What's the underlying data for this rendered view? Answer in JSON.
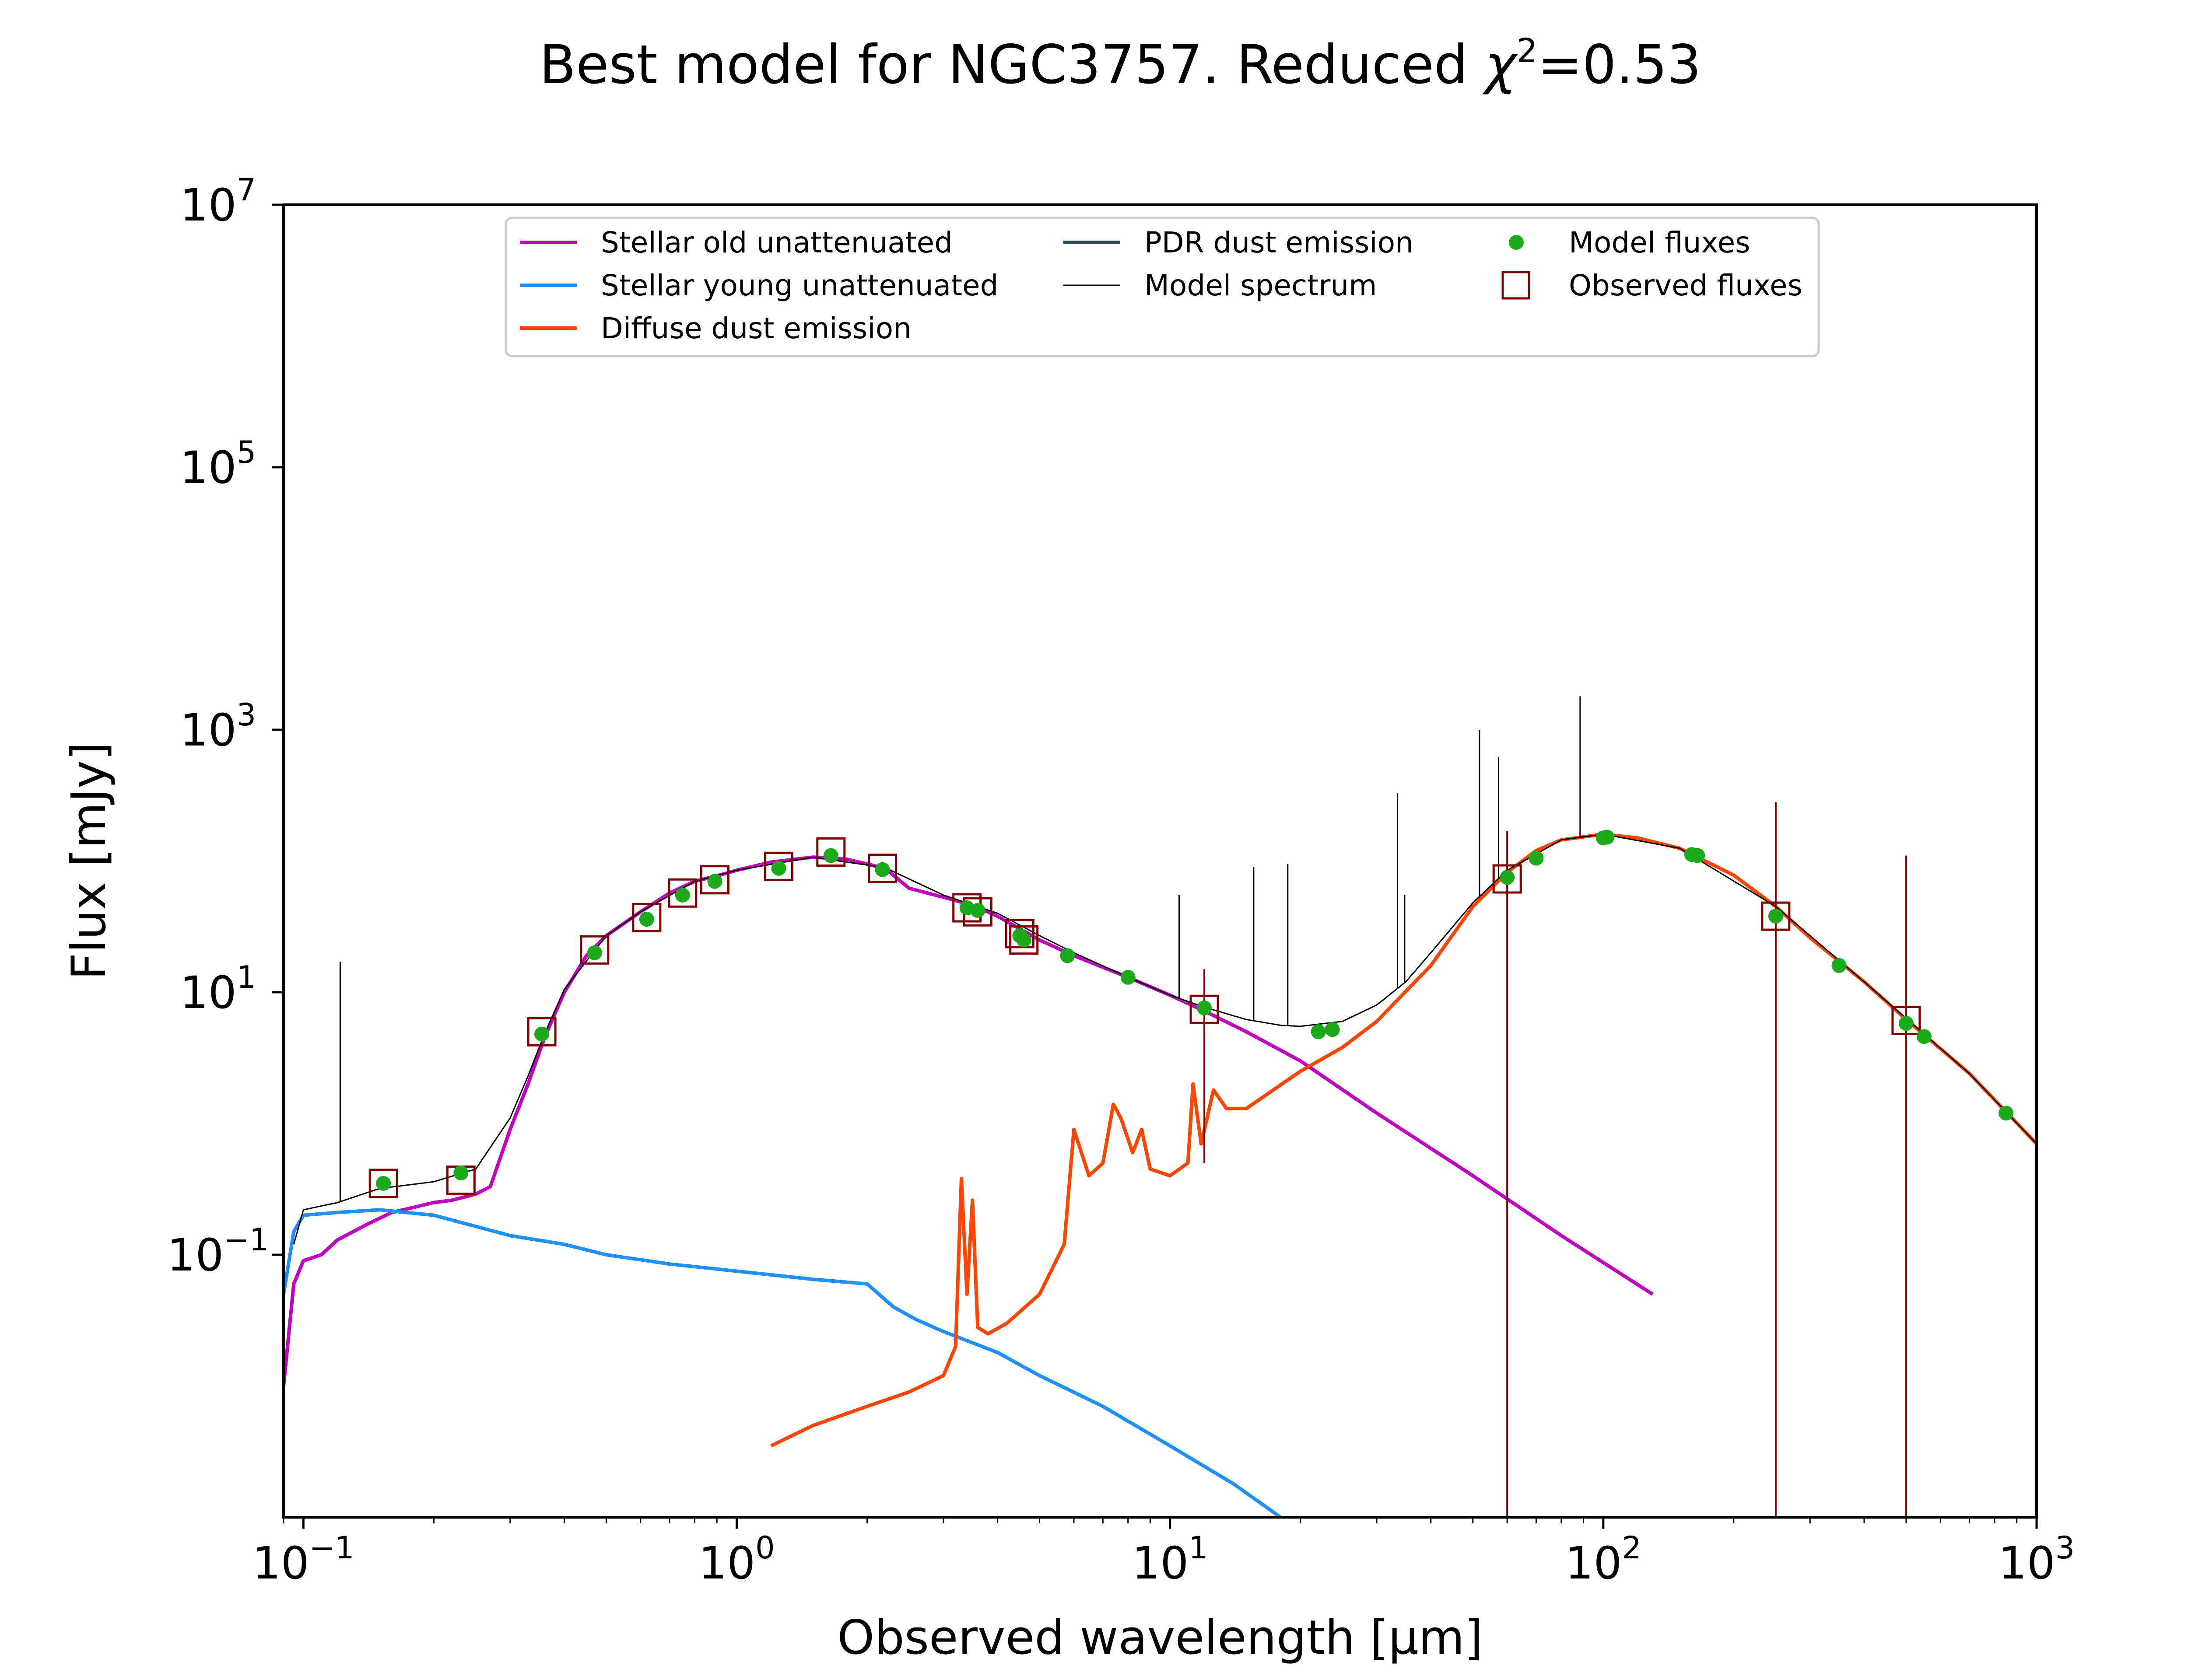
{
  "chart_data": {
    "type": "line",
    "title": "Best model for NGC3757. Reduced χ²=0.53",
    "title_parts": {
      "main": "Best model for NGC3757. Reduced ",
      "chi": "χ",
      "sup": "2",
      "tail": "=0.53"
    },
    "xlabel": "Observed wavelength [μm]",
    "ylabel": "Flux [mJy]",
    "xscale": "log",
    "yscale": "log",
    "xlim": [
      0.09,
      1000
    ],
    "ylim": [
      0.001,
      10000000
    ],
    "xticks": [
      {
        "base": "10",
        "exp": "−1",
        "value": 0.1
      },
      {
        "base": "10",
        "exp": "0",
        "value": 1
      },
      {
        "base": "10",
        "exp": "1",
        "value": 10
      },
      {
        "base": "10",
        "exp": "2",
        "value": 100
      },
      {
        "base": "10",
        "exp": "3",
        "value": 1000
      }
    ],
    "yticks": [
      {
        "base": "10",
        "exp": "−1",
        "value": 0.1
      },
      {
        "base": "10",
        "exp": "1",
        "value": 10
      },
      {
        "base": "10",
        "exp": "3",
        "value": 1000
      },
      {
        "base": "10",
        "exp": "5",
        "value": 100000
      },
      {
        "base": "10",
        "exp": "7",
        "value": 10000000
      }
    ],
    "grid": false,
    "legend_position": "top",
    "legend": [
      {
        "label": "Stellar old unattenuated",
        "color": "#bf00bf",
        "kind": "line"
      },
      {
        "label": "Stellar young unattenuated",
        "color": "#1e90ff",
        "kind": "line"
      },
      {
        "label": "Diffuse dust emission",
        "color": "#ff4500",
        "kind": "line"
      },
      {
        "label": "PDR dust emission",
        "color": "#2f4f4f",
        "kind": "line"
      },
      {
        "label": "Model spectrum",
        "color": "#000000",
        "kind": "thinline"
      },
      {
        "label": "Model fluxes",
        "color": "#1aaa1a",
        "kind": "dot"
      },
      {
        "label": "Observed fluxes",
        "color": "#800000",
        "kind": "square"
      }
    ],
    "series": [
      {
        "name": "Stellar old unattenuated",
        "color": "#bf00bf",
        "x": [
          0.09,
          0.095,
          0.1,
          0.11,
          0.12,
          0.14,
          0.16,
          0.18,
          0.2,
          0.22,
          0.25,
          0.27,
          0.3,
          0.33,
          0.36,
          0.4,
          0.45,
          0.5,
          0.6,
          0.7,
          0.8,
          0.9,
          1.0,
          1.2,
          1.5,
          1.8,
          2.2,
          2.5,
          3.0,
          3.5,
          4.0,
          5.0,
          6.0,
          8.0,
          10,
          12,
          15,
          20,
          30,
          50,
          80,
          130
        ],
        "y": [
          0.01,
          0.06,
          0.09,
          0.1,
          0.13,
          0.17,
          0.21,
          0.23,
          0.25,
          0.26,
          0.29,
          0.33,
          0.9,
          2.0,
          4.5,
          10,
          19,
          27,
          41,
          57,
          70,
          77,
          85,
          98,
          107,
          103,
          88,
          62,
          53,
          46,
          38,
          25,
          19,
          13,
          9.5,
          7.2,
          5.0,
          3.0,
          1.2,
          0.4,
          0.14,
          0.05
        ]
      },
      {
        "name": "Stellar young unattenuated",
        "color": "#1e90ff",
        "x": [
          0.09,
          0.095,
          0.1,
          0.12,
          0.15,
          0.2,
          0.3,
          0.4,
          0.5,
          0.7,
          1.0,
          1.5,
          2.0,
          2.3,
          2.6,
          3.0,
          4.0,
          5.0,
          7.0,
          10,
          14,
          18
        ],
        "y": [
          0.05,
          0.15,
          0.2,
          0.21,
          0.22,
          0.2,
          0.14,
          0.12,
          0.1,
          0.085,
          0.075,
          0.065,
          0.06,
          0.04,
          0.032,
          0.026,
          0.018,
          0.012,
          0.007,
          0.0035,
          0.0018,
          0.001
        ]
      },
      {
        "name": "Diffuse dust emission",
        "color": "#ff4500",
        "x": [
          1.2,
          1.5,
          2.0,
          2.5,
          3.0,
          3.2,
          3.3,
          3.4,
          3.5,
          3.6,
          3.8,
          4.2,
          5.0,
          5.7,
          6.0,
          6.5,
          7.0,
          7.4,
          7.7,
          8.2,
          8.6,
          9.0,
          10.0,
          11.0,
          11.3,
          11.8,
          12.6,
          13.5,
          15,
          20,
          25,
          30,
          40,
          50,
          60,
          70,
          80,
          100,
          120,
          150,
          200,
          250,
          300,
          400,
          500,
          700,
          1000
        ],
        "y": [
          0.0035,
          0.005,
          0.007,
          0.009,
          0.012,
          0.02,
          0.38,
          0.05,
          0.26,
          0.028,
          0.025,
          0.03,
          0.05,
          0.12,
          0.9,
          0.4,
          0.5,
          1.4,
          1.1,
          0.6,
          0.9,
          0.45,
          0.4,
          0.5,
          2.0,
          0.7,
          1.8,
          1.3,
          1.3,
          2.5,
          3.8,
          6.0,
          16,
          45,
          82,
          120,
          145,
          160,
          150,
          125,
          78,
          45,
          26,
          12,
          6.2,
          2.4,
          0.7
        ]
      },
      {
        "name": "Model spectrum",
        "color": "#000000",
        "x": [
          0.095,
          0.1,
          0.12,
          0.15,
          0.2,
          0.25,
          0.3,
          0.33,
          0.36,
          0.4,
          0.5,
          0.6,
          0.8,
          1.0,
          1.5,
          2.2,
          3.0,
          4.0,
          5.0,
          6.0,
          8.0,
          10,
          12,
          15,
          18,
          20,
          25,
          30,
          35,
          40,
          50,
          60,
          80,
          100,
          150,
          250,
          400,
          700,
          1000
        ],
        "y": [
          0.12,
          0.22,
          0.25,
          0.32,
          0.36,
          0.45,
          1.1,
          2.3,
          4.8,
          10.5,
          27,
          41,
          70,
          85,
          107,
          89,
          55,
          40,
          27,
          20,
          13,
          9.5,
          7.7,
          6.2,
          5.6,
          5.5,
          6.0,
          8.0,
          12,
          20,
          48,
          85,
          145,
          160,
          125,
          45,
          12,
          2.4,
          0.7
        ]
      }
    ],
    "spectrum_spikes": [
      {
        "x": 0.1216,
        "y": 17
      },
      {
        "x": 10.5,
        "y": 55
      },
      {
        "x": 15.6,
        "y": 90
      },
      {
        "x": 18.7,
        "y": 95
      },
      {
        "x": 33.5,
        "y": 330
      },
      {
        "x": 34.8,
        "y": 55
      },
      {
        "x": 51.8,
        "y": 1000
      },
      {
        "x": 57.3,
        "y": 620
      },
      {
        "x": 88.4,
        "y": 1800
      }
    ],
    "model_fluxes": {
      "x": [
        0.153,
        0.231,
        0.355,
        0.47,
        0.62,
        0.75,
        0.89,
        1.25,
        1.65,
        2.17,
        3.4,
        3.6,
        4.5,
        4.6,
        5.8,
        8.0,
        12,
        22,
        23.7,
        60,
        70,
        100,
        102,
        160,
        165,
        250,
        350,
        500,
        550,
        850
      ],
      "y": [
        0.35,
        0.42,
        4.8,
        20,
        36,
        55,
        70,
        88,
        110,
        86,
        44,
        42,
        27,
        25,
        19,
        13,
        7.6,
        5.0,
        5.2,
        75,
        105,
        150,
        152,
        112,
        110,
        38,
        16,
        5.8,
        4.6,
        1.2
      ]
    },
    "observed_fluxes": {
      "x": [
        0.153,
        0.231,
        0.355,
        0.47,
        0.62,
        0.75,
        0.89,
        1.25,
        1.65,
        2.17,
        3.4,
        3.6,
        4.5,
        4.6,
        12,
        60,
        250,
        500
      ],
      "y": [
        0.35,
        0.37,
        5.0,
        21,
        37,
        57,
        72,
        91,
        117,
        88,
        44,
        41,
        28,
        25,
        7.4,
        73,
        38,
        6.1
      ],
      "err_low": [
        null,
        null,
        null,
        null,
        null,
        null,
        null,
        null,
        null,
        null,
        null,
        null,
        null,
        null,
        0.5,
        0.001,
        0.001,
        0.001
      ],
      "err_high": [
        null,
        null,
        null,
        null,
        null,
        null,
        null,
        null,
        null,
        null,
        null,
        null,
        null,
        null,
        15,
        170,
        280,
        110
      ]
    }
  }
}
